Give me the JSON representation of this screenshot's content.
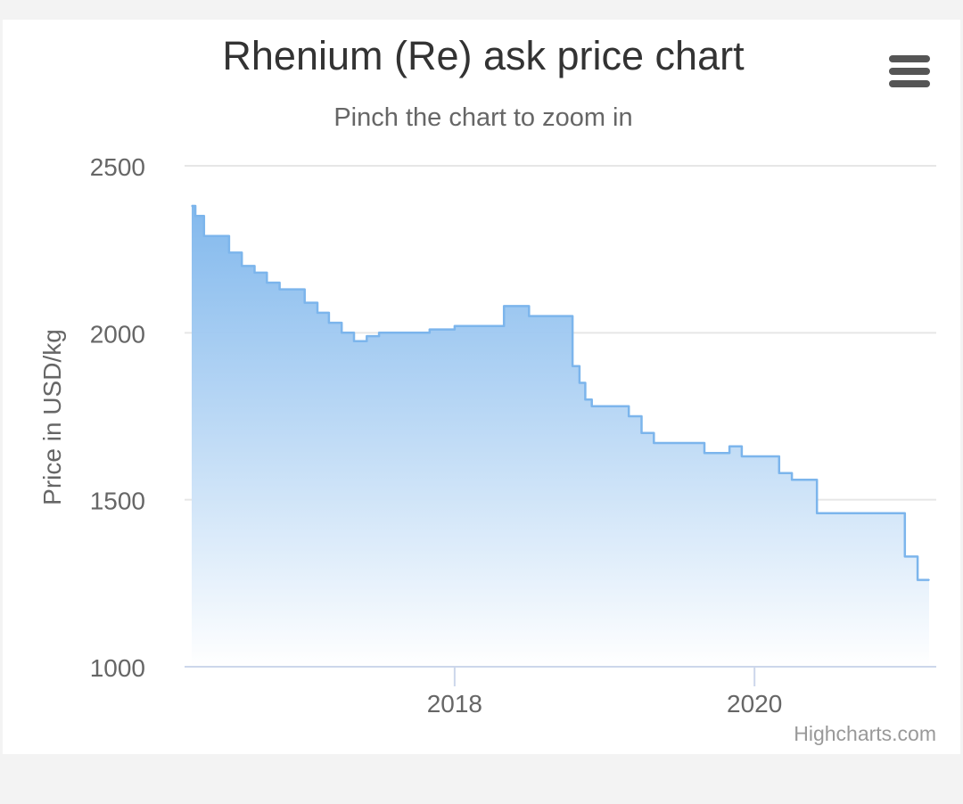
{
  "chart": {
    "title": "Rhenium (Re) ask price chart",
    "subtitle": "Pinch the chart to zoom in",
    "credits": "Highcharts.com",
    "menu_icon": "hamburger-menu-icon"
  },
  "colors": {
    "line": "#7cb5ec",
    "fill_top": "#7cb5ec",
    "fill_bottom": "#ffffff",
    "grid": "#e6e6e6",
    "axis": "#ccd6eb",
    "text": "#666666"
  },
  "chart_data": {
    "type": "area",
    "xlabel": "",
    "ylabel": "Price in USD/kg",
    "ylim": [
      1000,
      2500
    ],
    "yticks": [
      1000,
      1500,
      2000,
      2500
    ],
    "xticks": [
      "2018",
      "2020"
    ],
    "xlim": [
      "2016-04-01",
      "2021-03-01"
    ],
    "step": true,
    "grid": true,
    "legend": "none",
    "series": [
      {
        "x": [
          "2016-04-01",
          "2016-04-10",
          "2016-04-20",
          "2016-05-01",
          "2016-05-15",
          "2016-07-01",
          "2016-08-01",
          "2016-09-01",
          "2016-10-01",
          "2016-11-01",
          "2017-01-01",
          "2017-02-01",
          "2017-03-01",
          "2017-04-01",
          "2017-05-01",
          "2017-06-01",
          "2017-07-01",
          "2017-09-01",
          "2017-11-01",
          "2018-01-01",
          "2018-03-01",
          "2018-05-01",
          "2018-07-01",
          "2018-09-01",
          "2018-10-15",
          "2018-11-01",
          "2018-11-15",
          "2018-12-01",
          "2018-12-15",
          "2019-01-01",
          "2019-03-01",
          "2019-04-01",
          "2019-05-01",
          "2019-08-01",
          "2019-09-01",
          "2019-10-01",
          "2019-11-01",
          "2019-12-01",
          "2020-01-01",
          "2020-02-01",
          "2020-03-01",
          "2020-04-01",
          "2020-05-01",
          "2020-06-01",
          "2020-07-01",
          "2020-09-01",
          "2020-12-01",
          "2021-01-01",
          "2021-02-01",
          "2021-03-01"
        ],
        "values": [
          2380,
          2350,
          2350,
          2290,
          2290,
          2240,
          2200,
          2180,
          2150,
          2130,
          2090,
          2060,
          2030,
          2000,
          1975,
          1990,
          2000,
          2000,
          2010,
          2020,
          2020,
          2080,
          2050,
          2050,
          1900,
          1850,
          1800,
          1780,
          1780,
          1780,
          1750,
          1700,
          1670,
          1670,
          1640,
          1640,
          1660,
          1630,
          1630,
          1630,
          1580,
          1560,
          1560,
          1460,
          1460,
          1460,
          1460,
          1330,
          1260,
          1260
        ]
      }
    ]
  }
}
